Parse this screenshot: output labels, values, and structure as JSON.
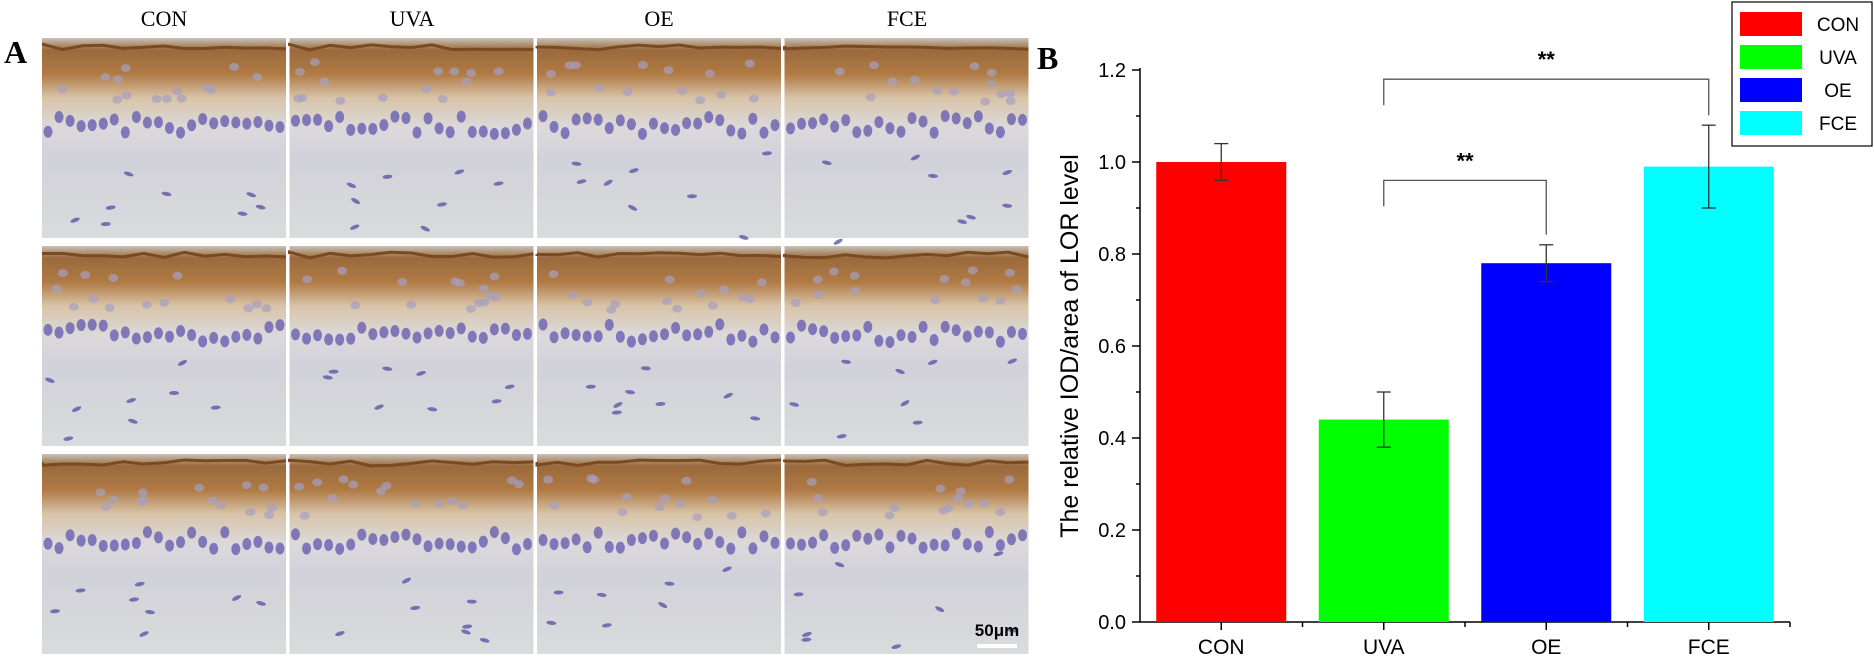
{
  "panel_a": {
    "letter": "A",
    "columns": [
      "CON",
      "UVA",
      "OE",
      "FCE"
    ],
    "rows": 3,
    "scale_bar": "50μm"
  },
  "panel_b": {
    "letter": "B"
  },
  "chart_data": {
    "type": "bar",
    "categories": [
      "CON",
      "UVA",
      "OE",
      "FCE"
    ],
    "values": [
      1.0,
      0.44,
      0.78,
      0.99
    ],
    "errors": [
      0.04,
      0.06,
      0.04,
      0.09
    ],
    "colors": [
      "#ff0000",
      "#00ff00",
      "#0000ff",
      "#00ffff"
    ],
    "ylabel": "The relative IOD/area of LOR level",
    "xlabel": "",
    "ylim": [
      0,
      1.2
    ],
    "yticks": [
      0.0,
      0.2,
      0.4,
      0.6,
      0.8,
      1.0,
      1.2
    ],
    "legend": {
      "position": "top-right",
      "entries": [
        "CON",
        "UVA",
        "OE",
        "FCE"
      ]
    },
    "significance": [
      {
        "from": "UVA",
        "to": "OE",
        "label": "**"
      },
      {
        "from": "UVA",
        "to": "FCE",
        "label": "**"
      }
    ]
  }
}
